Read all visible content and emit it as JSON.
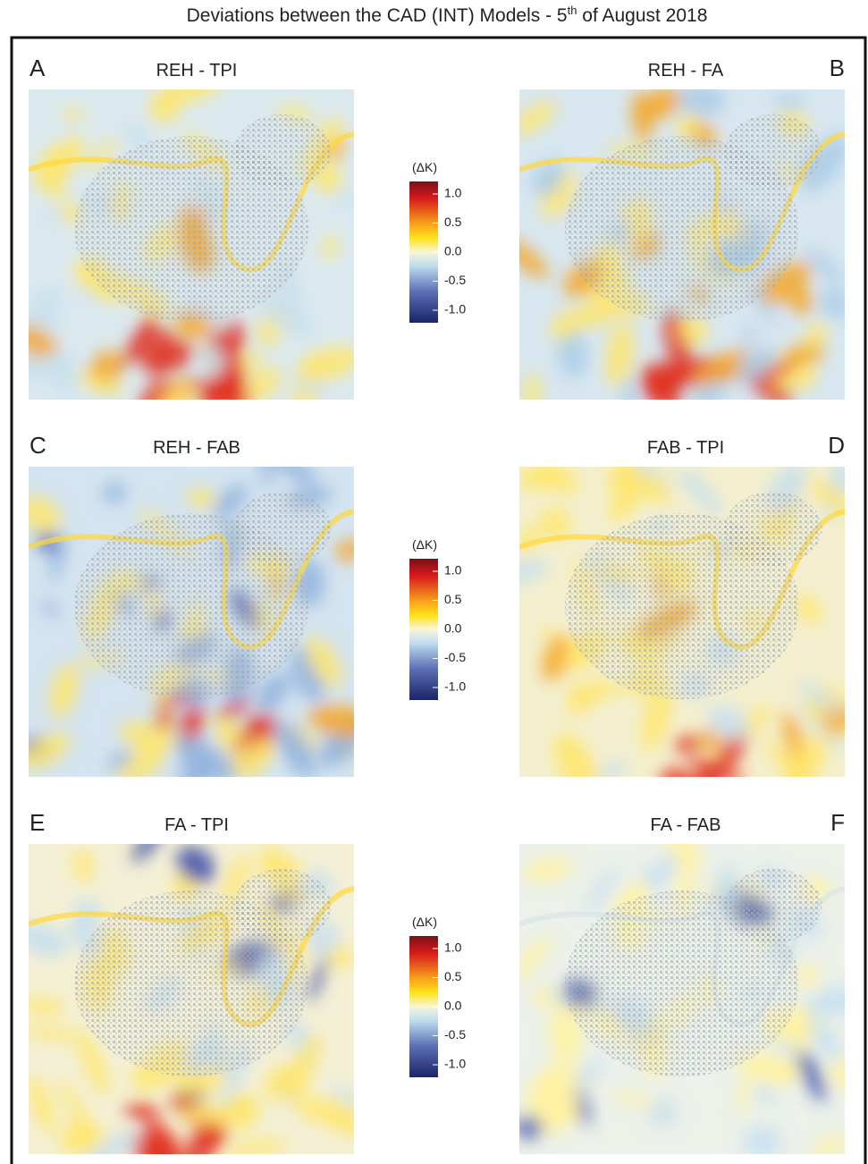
{
  "title": {
    "before": "Deviations between the CAD (INT) Models - 5",
    "superscript": "th",
    "after": " of August 2018"
  },
  "panels": [
    {
      "letter": "A",
      "label": "REH - TPI"
    },
    {
      "letter": "B",
      "label": "REH - FA"
    },
    {
      "letter": "C",
      "label": "REH - FAB"
    },
    {
      "letter": "D",
      "label": "FAB - TPI"
    },
    {
      "letter": "E",
      "label": "FA - TPI"
    },
    {
      "letter": "F",
      "label": "FA - FAB"
    }
  ],
  "colorbars": [
    {
      "label": "(ΔK)",
      "ticks": [
        "1.0",
        "0.5",
        "0.0",
        "-0.5",
        "-1.0"
      ]
    },
    {
      "label": "(ΔK)",
      "ticks": [
        "1.0",
        "0.5",
        "0.0",
        "-0.5",
        "-1.0"
      ]
    },
    {
      "label": "(ΔK)",
      "ticks": [
        "1.0",
        "0.5",
        "0.0",
        "-0.5",
        "-1.0"
      ]
    }
  ]
}
